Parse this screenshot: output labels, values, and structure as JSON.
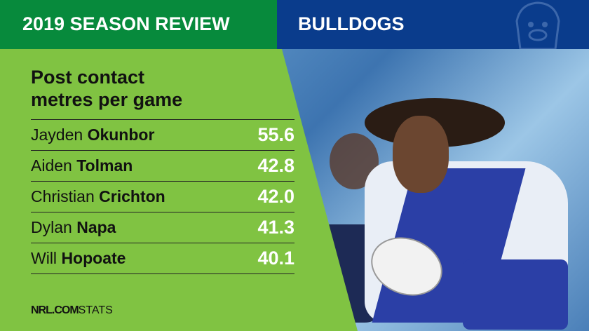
{
  "header": {
    "left_title": "2019 SEASON REVIEW",
    "right_title": "BULLDOGS",
    "logo": "bulldog-crest-icon"
  },
  "stat": {
    "title_line1": "Post contact",
    "title_line2": "metres per game"
  },
  "players": [
    {
      "first": "Jayden",
      "last": "Okunbor",
      "value": "55.6"
    },
    {
      "first": "Aiden",
      "last": "Tolman",
      "value": "42.8"
    },
    {
      "first": "Christian",
      "last": "Crichton",
      "value": "42.0"
    },
    {
      "first": "Dylan",
      "last": "Napa",
      "value": "41.3"
    },
    {
      "first": "Will",
      "last": "Hopoate",
      "value": "40.1"
    }
  ],
  "footer": {
    "brand": "NRL.COM",
    "suffix": "STATS"
  },
  "colors": {
    "green": "#078a3c",
    "blue": "#0a3c8c",
    "lime": "#80c342"
  }
}
